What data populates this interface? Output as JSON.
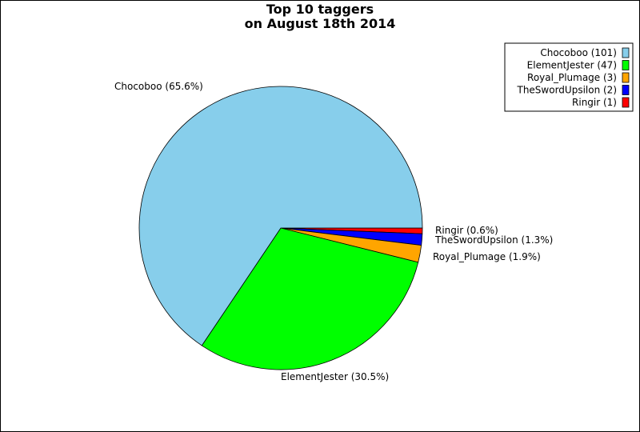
{
  "chart_data": {
    "type": "pie",
    "title_lines": [
      "Top 10 taggers",
      "on August 18th 2014"
    ],
    "slices": [
      {
        "label": "Chocoboo",
        "value": 101,
        "percent_label": "Chocoboo (65.6%)",
        "legend_label": "Chocoboo (101)",
        "color": "#87CEEB"
      },
      {
        "label": "ElementJester",
        "value": 47,
        "percent_label": "ElementJester (30.5%)",
        "legend_label": "ElementJester (47)",
        "color": "#00FF00"
      },
      {
        "label": "Royal_Plumage",
        "value": 3,
        "percent_label": "Royal_Plumage (1.9%)",
        "legend_label": "Royal_Plumage (3)",
        "color": "#FFA500"
      },
      {
        "label": "TheSwordUpsilon",
        "value": 2,
        "percent_label": "TheSwordUpsilon (1.3%)",
        "legend_label": "TheSwordUpsilon (2)",
        "color": "#0000FF"
      },
      {
        "label": "Ringir",
        "value": 1,
        "percent_label": "Ringir (0.6%)",
        "legend_label": "Ringir (1)",
        "color": "#FF0000"
      }
    ],
    "legend_position": "top-right"
  }
}
